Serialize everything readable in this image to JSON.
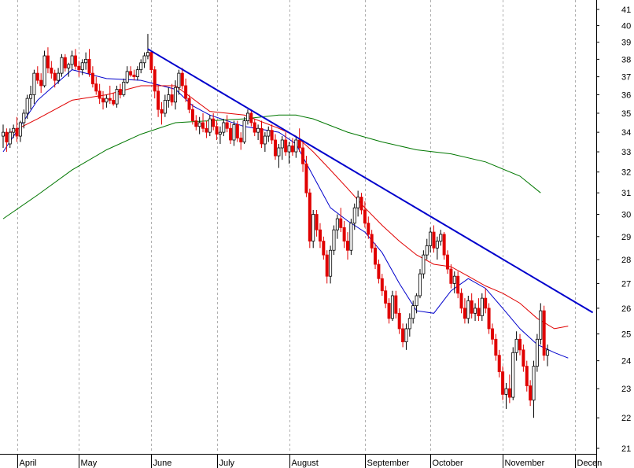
{
  "chart_data": {
    "type": "candlestick",
    "title": "",
    "xlabel": "",
    "ylabel": "",
    "ylim": [
      21,
      41
    ],
    "y_ticks": [
      21,
      22,
      23,
      24,
      25,
      26,
      27,
      28,
      29,
      30,
      31,
      32,
      33,
      34,
      35,
      36,
      37,
      38,
      39,
      40,
      41
    ],
    "x_labels": [
      "April",
      "May",
      "June",
      "July",
      "August",
      "September",
      "October",
      "November",
      "Decen"
    ],
    "colors": {
      "up": "#000000",
      "down": "#e00000",
      "ma_short": "#0000cc",
      "ma_mid": "#e00000",
      "ma_long": "#007700",
      "trendline": "#0000cc",
      "grid": "#b0b0b0"
    },
    "grid": true,
    "candles": [
      [
        33.8,
        34.4,
        33.2,
        34.0
      ],
      [
        34.0,
        34.2,
        33.0,
        33.5
      ],
      [
        33.4,
        34.2,
        33.2,
        34.0
      ],
      [
        34.0,
        34.4,
        33.7,
        34.2
      ],
      [
        34.2,
        34.8,
        33.5,
        33.8
      ],
      [
        33.8,
        34.6,
        33.5,
        34.5
      ],
      [
        34.5,
        35.2,
        34.2,
        35.0
      ],
      [
        35.0,
        36.0,
        34.7,
        35.8
      ],
      [
        35.8,
        36.5,
        35.2,
        36.0
      ],
      [
        36.0,
        37.4,
        35.5,
        37.2
      ],
      [
        37.2,
        37.6,
        36.6,
        36.8
      ],
      [
        36.8,
        37.2,
        36.1,
        36.5
      ],
      [
        36.5,
        38.5,
        36.4,
        38.2
      ],
      [
        38.2,
        38.7,
        37.2,
        37.5
      ],
      [
        37.5,
        37.9,
        36.9,
        37.2
      ],
      [
        37.2,
        37.4,
        36.4,
        36.8
      ],
      [
        36.8,
        37.5,
        36.6,
        37.2
      ],
      [
        37.2,
        38.3,
        37.0,
        38.1
      ],
      [
        38.1,
        38.3,
        37.3,
        37.5
      ],
      [
        37.5,
        37.8,
        37.0,
        37.7
      ],
      [
        37.7,
        38.5,
        37.4,
        38.2
      ],
      [
        38.2,
        38.6,
        37.4,
        37.6
      ],
      [
        37.6,
        37.9,
        37.0,
        37.4
      ],
      [
        37.4,
        38.0,
        37.1,
        37.8
      ],
      [
        37.8,
        38.4,
        37.4,
        38.0
      ],
      [
        38.0,
        38.6,
        37.0,
        37.2
      ],
      [
        37.2,
        37.6,
        36.4,
        36.6
      ],
      [
        36.6,
        37.0,
        36.0,
        36.2
      ],
      [
        36.2,
        36.6,
        35.5,
        35.8
      ],
      [
        35.8,
        36.2,
        35.2,
        35.6
      ],
      [
        35.6,
        36.0,
        35.3,
        35.8
      ],
      [
        35.8,
        36.5,
        35.5,
        35.7
      ],
      [
        35.7,
        36.1,
        35.4,
        35.5
      ],
      [
        35.5,
        36.5,
        35.3,
        36.3
      ],
      [
        36.3,
        36.6,
        35.8,
        36.0
      ],
      [
        36.0,
        36.9,
        35.9,
        36.7
      ],
      [
        36.7,
        37.6,
        36.6,
        37.3
      ],
      [
        37.3,
        37.6,
        37.0,
        37.1
      ],
      [
        37.1,
        37.4,
        36.8,
        37.0
      ],
      [
        37.0,
        37.6,
        36.8,
        37.4
      ],
      [
        37.4,
        38.0,
        37.2,
        37.8
      ],
      [
        37.8,
        38.4,
        37.5,
        38.2
      ],
      [
        38.2,
        39.5,
        38.0,
        38.4
      ],
      [
        38.4,
        38.5,
        37.2,
        37.4
      ],
      [
        37.4,
        37.6,
        35.8,
        36.2
      ],
      [
        36.2,
        36.5,
        34.8,
        35.2
      ],
      [
        35.2,
        35.6,
        34.4,
        35.0
      ],
      [
        35.0,
        36.0,
        34.8,
        35.7
      ],
      [
        35.7,
        36.4,
        35.3,
        36.0
      ],
      [
        36.0,
        36.6,
        35.4,
        35.6
      ],
      [
        35.6,
        36.8,
        35.2,
        36.4
      ],
      [
        36.4,
        37.4,
        36.0,
        37.2
      ],
      [
        37.2,
        37.5,
        36.3,
        36.5
      ],
      [
        36.5,
        36.9,
        35.6,
        35.8
      ],
      [
        35.8,
        36.0,
        35.0,
        35.2
      ],
      [
        35.2,
        35.5,
        34.4,
        34.6
      ],
      [
        34.6,
        34.9,
        34.1,
        34.3
      ],
      [
        34.3,
        34.8,
        33.9,
        34.5
      ],
      [
        34.5,
        35.0,
        34.0,
        34.2
      ],
      [
        34.2,
        34.6,
        33.7,
        34.0
      ],
      [
        34.0,
        34.9,
        33.8,
        34.7
      ],
      [
        34.7,
        35.0,
        34.1,
        34.3
      ],
      [
        34.3,
        34.6,
        33.6,
        33.9
      ],
      [
        33.9,
        34.3,
        33.4,
        34.0
      ],
      [
        34.0,
        34.7,
        33.8,
        34.5
      ],
      [
        34.5,
        34.9,
        34.0,
        34.2
      ],
      [
        34.2,
        34.5,
        33.4,
        33.6
      ],
      [
        33.6,
        34.6,
        33.3,
        34.4
      ],
      [
        34.4,
        34.6,
        33.5,
        33.7
      ],
      [
        33.7,
        34.0,
        33.1,
        33.5
      ],
      [
        33.5,
        34.8,
        33.4,
        34.6
      ],
      [
        34.6,
        35.2,
        34.4,
        35.0
      ],
      [
        35.0,
        35.2,
        34.3,
        34.5
      ],
      [
        34.5,
        34.7,
        33.8,
        34.0
      ],
      [
        34.0,
        34.4,
        33.6,
        34.2
      ],
      [
        34.2,
        34.6,
        33.2,
        33.4
      ],
      [
        33.4,
        34.0,
        33.0,
        33.8
      ],
      [
        33.8,
        34.3,
        33.5,
        34.1
      ],
      [
        34.1,
        34.4,
        33.4,
        33.6
      ],
      [
        33.6,
        33.9,
        32.6,
        32.8
      ],
      [
        32.8,
        33.4,
        32.2,
        33.2
      ],
      [
        33.2,
        33.8,
        32.6,
        33.6
      ],
      [
        33.6,
        34.0,
        32.8,
        33.0
      ],
      [
        33.0,
        33.5,
        32.4,
        33.3
      ],
      [
        33.3,
        33.7,
        32.8,
        33.0
      ],
      [
        33.0,
        33.8,
        32.7,
        33.6
      ],
      [
        33.6,
        34.2,
        33.0,
        33.2
      ],
      [
        33.2,
        33.6,
        32.0,
        32.4
      ],
      [
        32.4,
        32.8,
        30.8,
        31.0
      ],
      [
        31.0,
        31.2,
        28.5,
        28.8
      ],
      [
        28.8,
        30.2,
        28.5,
        30.0
      ],
      [
        30.0,
        30.2,
        29.0,
        29.3
      ],
      [
        29.3,
        29.6,
        28.5,
        28.8
      ],
      [
        28.8,
        29.0,
        28.0,
        28.2
      ],
      [
        28.2,
        28.4,
        27.0,
        27.3
      ],
      [
        27.3,
        28.6,
        27.0,
        28.4
      ],
      [
        28.4,
        29.5,
        28.2,
        29.3
      ],
      [
        29.3,
        30.0,
        28.9,
        29.8
      ],
      [
        29.8,
        30.3,
        29.2,
        29.4
      ],
      [
        29.4,
        29.7,
        28.5,
        28.8
      ],
      [
        28.8,
        29.2,
        28.0,
        28.4
      ],
      [
        28.4,
        29.8,
        28.2,
        29.6
      ],
      [
        29.6,
        30.5,
        29.3,
        30.3
      ],
      [
        30.3,
        31.1,
        29.9,
        30.8
      ],
      [
        30.8,
        31.0,
        30.0,
        30.2
      ],
      [
        30.2,
        30.6,
        29.4,
        29.6
      ],
      [
        29.6,
        29.9,
        28.9,
        29.1
      ],
      [
        29.1,
        29.3,
        28.3,
        28.5
      ],
      [
        28.5,
        28.7,
        27.6,
        27.8
      ],
      [
        27.8,
        28.0,
        27.0,
        27.2
      ],
      [
        27.2,
        27.4,
        26.5,
        26.7
      ],
      [
        26.7,
        26.9,
        26.0,
        26.2
      ],
      [
        26.2,
        26.4,
        25.4,
        25.6
      ],
      [
        25.6,
        26.7,
        25.5,
        26.5
      ],
      [
        26.5,
        26.7,
        25.6,
        25.8
      ],
      [
        25.8,
        26.0,
        25.0,
        25.2
      ],
      [
        25.2,
        25.4,
        24.5,
        24.7
      ],
      [
        24.7,
        25.4,
        24.4,
        25.2
      ],
      [
        25.2,
        25.8,
        24.9,
        25.6
      ],
      [
        25.6,
        26.3,
        25.4,
        26.1
      ],
      [
        26.1,
        26.6,
        25.8,
        26.5
      ],
      [
        26.5,
        27.6,
        26.4,
        27.4
      ],
      [
        27.4,
        28.4,
        27.2,
        28.2
      ],
      [
        28.2,
        28.9,
        28.0,
        28.6
      ],
      [
        28.6,
        29.4,
        28.3,
        29.2
      ],
      [
        29.2,
        29.5,
        28.3,
        28.5
      ],
      [
        28.5,
        29.0,
        28.0,
        28.8
      ],
      [
        28.8,
        29.3,
        28.6,
        29.1
      ],
      [
        29.1,
        29.2,
        28.0,
        28.2
      ],
      [
        28.2,
        28.4,
        27.4,
        27.6
      ],
      [
        27.6,
        27.8,
        26.8,
        27.0
      ],
      [
        27.0,
        27.5,
        26.6,
        27.3
      ],
      [
        27.3,
        27.5,
        26.4,
        26.6
      ],
      [
        26.6,
        26.8,
        25.8,
        26.0
      ],
      [
        26.0,
        26.4,
        25.4,
        25.6
      ],
      [
        25.6,
        26.5,
        25.4,
        26.3
      ],
      [
        26.3,
        26.6,
        25.6,
        25.8
      ],
      [
        25.8,
        26.2,
        25.5,
        26.0
      ],
      [
        26.0,
        26.4,
        25.5,
        25.7
      ],
      [
        25.7,
        26.6,
        25.5,
        26.4
      ],
      [
        26.4,
        26.8,
        25.8,
        26.0
      ],
      [
        26.0,
        26.2,
        25.0,
        25.2
      ],
      [
        25.2,
        25.4,
        24.6,
        24.8
      ],
      [
        24.8,
        25.0,
        24.0,
        24.2
      ],
      [
        24.2,
        24.4,
        23.4,
        23.6
      ],
      [
        23.6,
        23.8,
        22.6,
        22.8
      ],
      [
        22.8,
        23.2,
        22.3,
        23.0
      ],
      [
        23.0,
        23.5,
        22.5,
        22.7
      ],
      [
        22.7,
        24.5,
        22.6,
        24.3
      ],
      [
        24.3,
        25.1,
        24.0,
        24.8
      ],
      [
        24.8,
        25.0,
        24.2,
        24.4
      ],
      [
        24.4,
        24.6,
        23.6,
        23.8
      ],
      [
        23.8,
        24.0,
        22.9,
        23.1
      ],
      [
        23.1,
        23.3,
        22.4,
        22.6
      ],
      [
        22.6,
        24.0,
        22.0,
        23.8
      ],
      [
        23.8,
        25.0,
        23.6,
        24.8
      ],
      [
        24.8,
        26.2,
        24.6,
        25.9
      ],
      [
        25.9,
        26.1,
        24.0,
        24.2
      ],
      [
        24.2,
        24.6,
        23.8,
        24.4
      ]
    ],
    "series": [
      {
        "name": "",
        "color": "#0000cc",
        "x": [
          0,
          10,
          20,
          30,
          40,
          50,
          55,
          60,
          70,
          80,
          85,
          90,
          95,
          100,
          105,
          110,
          115,
          120,
          125,
          130,
          135,
          140,
          145,
          150,
          155,
          160,
          164
        ],
        "values": [
          33.0,
          35.7,
          37.4,
          36.9,
          36.8,
          36.3,
          35.4,
          34.9,
          34.3,
          34.0,
          33.4,
          31.8,
          30.3,
          29.7,
          29.2,
          28.3,
          27.0,
          25.9,
          25.8,
          26.7,
          27.2,
          26.8,
          26.0,
          25.2,
          24.6,
          24.3,
          24.1
        ]
      },
      {
        "name": "",
        "color": "#e00000",
        "x": [
          0,
          10,
          20,
          30,
          40,
          50,
          60,
          70,
          80,
          85,
          90,
          95,
          100,
          105,
          110,
          115,
          120,
          125,
          130,
          135,
          140,
          145,
          150,
          155,
          160,
          164
        ],
        "values": [
          33.8,
          34.7,
          35.7,
          36.0,
          36.5,
          36.5,
          35.1,
          34.9,
          34.2,
          33.8,
          33.0,
          32.1,
          31.2,
          30.3,
          29.5,
          28.8,
          28.2,
          27.8,
          27.7,
          27.3,
          26.9,
          26.6,
          26.2,
          25.6,
          25.2,
          25.3
        ]
      },
      {
        "name": "",
        "color": "#007700",
        "x": [
          0,
          10,
          20,
          30,
          40,
          50,
          60,
          70,
          80,
          85,
          90,
          100,
          110,
          120,
          130,
          140,
          150,
          156
        ],
        "values": [
          29.8,
          30.9,
          32.1,
          33.1,
          33.9,
          34.5,
          34.6,
          34.7,
          34.9,
          34.9,
          34.7,
          34.0,
          33.5,
          33.1,
          32.9,
          32.5,
          31.8,
          31.0
        ]
      }
    ],
    "trendline": {
      "x": [
        42,
        174
      ],
      "values": [
        38.6,
        25.6
      ]
    }
  }
}
